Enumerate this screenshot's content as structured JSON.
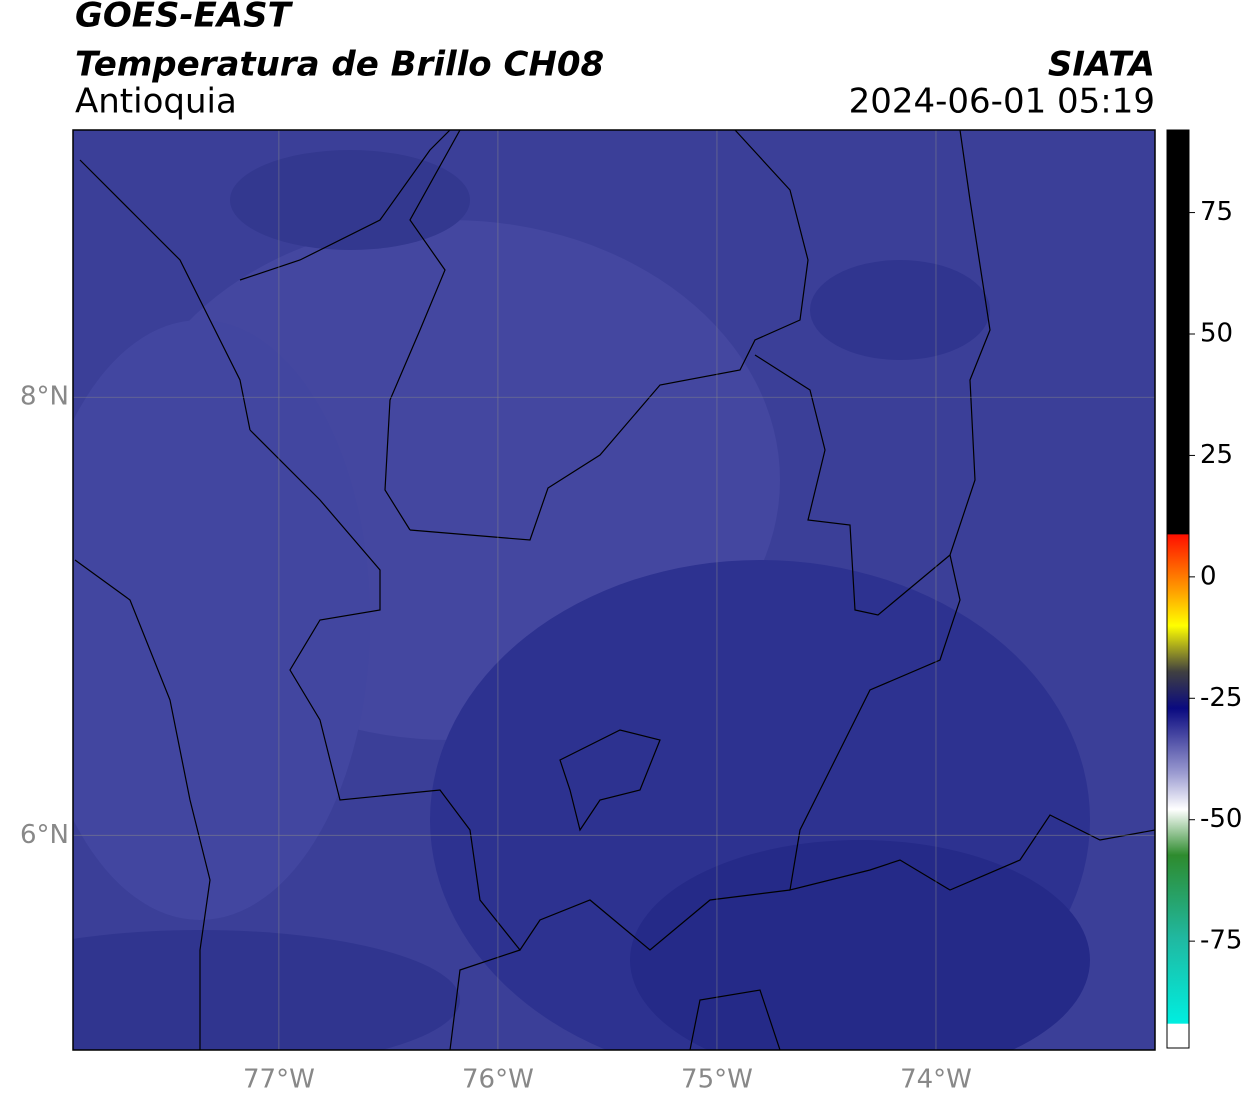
{
  "title": "GOES-EAST",
  "subtitle": "Temperatura de Brillo CH08",
  "source": "SIATA",
  "region": "Antioquia",
  "datetime": "2024-06-01 05:19",
  "map": {
    "xlim": [
      -77.94,
      -73.0
    ],
    "ylim": [
      5.02,
      9.22
    ],
    "xticks": [
      {
        "value": -77,
        "label": "77°W"
      },
      {
        "value": -76,
        "label": "76°W"
      },
      {
        "value": -75,
        "label": "75°W"
      },
      {
        "value": -74,
        "label": "74°W"
      }
    ],
    "yticks": [
      {
        "value": 8,
        "label": "8°N"
      },
      {
        "value": 6,
        "label": "6°N"
      }
    ],
    "grid": true
  },
  "colorbar": {
    "lim": [
      -97,
      92
    ],
    "ticks": [
      75,
      50,
      25,
      0,
      -25,
      -50,
      -75
    ]
  }
}
